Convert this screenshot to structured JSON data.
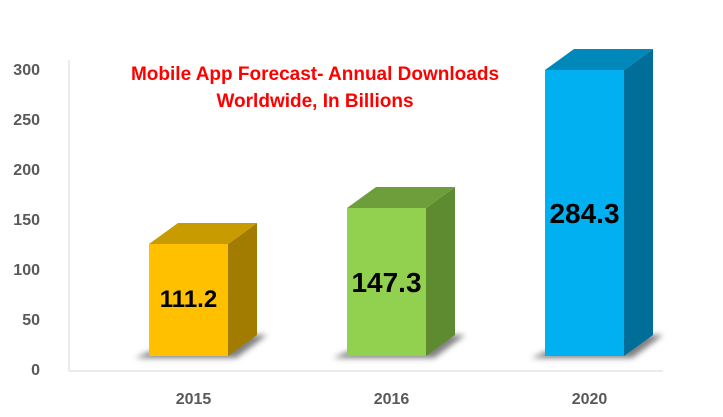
{
  "chart_data": {
    "type": "bar",
    "style": "3d-column",
    "title": "Mobile App Forecast- Annual Downloads Worldwide, In Billions",
    "title_lines": [
      "Mobile App Forecast- Annual Downloads",
      "Worldwide, In Billions"
    ],
    "categories": [
      "2015",
      "2016",
      "2020"
    ],
    "values": [
      111.2,
      147.3,
      284.3
    ],
    "value_labels": [
      "111.2",
      "147.3",
      "284.3"
    ],
    "xlabel": "",
    "ylabel": "",
    "ylim": [
      0,
      300
    ],
    "yticks": [
      0,
      50,
      100,
      150,
      200,
      250,
      300
    ],
    "grid": false,
    "legend": null,
    "colors": {
      "bars": [
        {
          "front": "#FFC000",
          "top": "#C89B00",
          "side": "#A17C00"
        },
        {
          "front": "#92D050",
          "top": "#6E9E3C",
          "side": "#5E8B30"
        },
        {
          "front": "#00B0F0",
          "top": "#0088BB",
          "side": "#006E99"
        }
      ],
      "title": "#FF0000",
      "axis_text": "#595959",
      "axis_line": "#D9D9D9"
    }
  }
}
